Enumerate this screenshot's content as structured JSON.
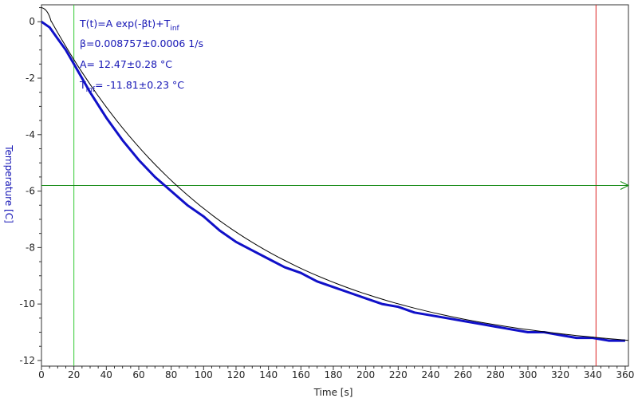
{
  "colors": {
    "axis": "#333333",
    "data": "#1010c8",
    "fit": "#000000",
    "cursor_vertical_left": "#33cc33",
    "cursor_vertical_right": "#dd2222",
    "cursor_horizontal": "#118811",
    "annotation_text": "#1515b5",
    "ylabel": "#1515b5"
  },
  "annotation": {
    "model_prefix": "T(t)=A exp(-βt)+T",
    "model_sub": "inf",
    "beta": "β=0.008757±0.0006 1/s",
    "A": "A= 12.47±0.28 °C",
    "tinf_prefix": "T",
    "tinf_sub": "inf",
    "tinf_value": "= -11.81±0.23 °C"
  },
  "cursors": {
    "vertical_left_x": 20,
    "vertical_right_x": 342,
    "horizontal_y": -5.8
  },
  "chart_data": {
    "type": "line",
    "xlabel": "Time [s]",
    "ylabel": "Temperature [C]",
    "xlim": [
      0,
      362
    ],
    "ylim": [
      -12.2,
      0.6
    ],
    "xticks": [
      0,
      20,
      40,
      60,
      80,
      100,
      120,
      140,
      160,
      180,
      200,
      220,
      240,
      260,
      280,
      300,
      320,
      340,
      360
    ],
    "yticks": [
      0,
      -2,
      -4,
      -6,
      -8,
      -10,
      -12
    ],
    "grid": false,
    "fit": {
      "A": 12.47,
      "beta": 0.008757,
      "T_inf": -11.81
    },
    "series": [
      {
        "x": [
          0,
          5,
          10,
          15,
          20,
          30,
          40,
          50,
          60,
          70,
          80,
          90,
          100,
          110,
          120,
          130,
          140,
          150,
          160,
          170,
          180,
          190,
          200,
          210,
          220,
          230,
          240,
          250,
          260,
          270,
          280,
          290,
          300,
          310,
          320,
          330,
          340,
          350,
          360
        ],
        "values": [
          0,
          -0.2,
          -0.6,
          -1.0,
          -1.5,
          -2.5,
          -3.4,
          -4.2,
          -4.9,
          -5.5,
          -6.0,
          -6.5,
          -6.9,
          -7.4,
          -7.8,
          -8.1,
          -8.4,
          -8.7,
          -8.9,
          -9.2,
          -9.4,
          -9.6,
          -9.8,
          -10.0,
          -10.1,
          -10.3,
          -10.4,
          -10.5,
          -10.6,
          -10.7,
          -10.8,
          -10.9,
          -11.0,
          -11.0,
          -11.1,
          -11.2,
          -11.2,
          -11.3,
          -11.3
        ]
      }
    ]
  }
}
